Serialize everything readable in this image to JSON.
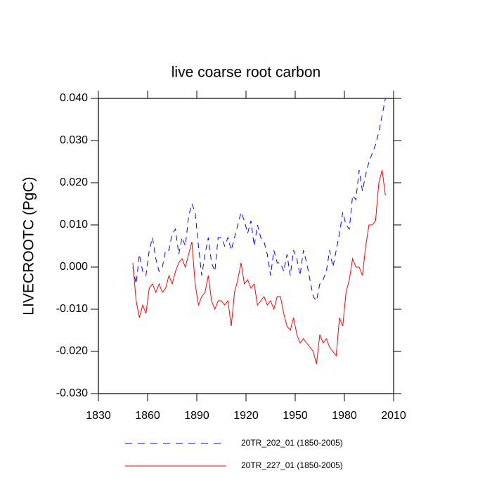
{
  "chart_data": {
    "type": "line",
    "title": "live coarse root carbon",
    "y_label": "LIVECROOTC  (PgC)",
    "x": [
      1851,
      1853,
      1855,
      1857,
      1859,
      1861,
      1863,
      1865,
      1867,
      1869,
      1871,
      1873,
      1875,
      1877,
      1879,
      1881,
      1883,
      1885,
      1887,
      1889,
      1891,
      1893,
      1895,
      1897,
      1899,
      1901,
      1903,
      1905,
      1907,
      1909,
      1911,
      1913,
      1915,
      1917,
      1919,
      1921,
      1923,
      1925,
      1927,
      1929,
      1931,
      1933,
      1935,
      1937,
      1939,
      1941,
      1943,
      1945,
      1947,
      1949,
      1951,
      1953,
      1955,
      1957,
      1959,
      1961,
      1963,
      1965,
      1967,
      1969,
      1971,
      1973,
      1975,
      1977,
      1979,
      1981,
      1983,
      1985,
      1987,
      1989,
      1991,
      1993,
      1995,
      1997,
      1999,
      2001,
      2003,
      2005
    ],
    "series": [
      {
        "name": "20TR_202_01 (1850-2005)",
        "color": "#0000ff",
        "dashed": true,
        "values": [
          0.0,
          -0.004,
          0.003,
          -0.001,
          -0.002,
          0.004,
          0.007,
          0.002,
          -0.001,
          0.0,
          0.004,
          0.004,
          0.008,
          0.009,
          0.003,
          0.007,
          0.005,
          0.012,
          0.015,
          0.013,
          0.005,
          -0.002,
          0.003,
          0.007,
          0.001,
          -0.001,
          0.007,
          0.007,
          0.005,
          0.007,
          0.004,
          0.007,
          0.01,
          0.013,
          0.011,
          0.008,
          0.011,
          0.005,
          0.01,
          0.007,
          0.006,
          0.003,
          -0.002,
          0.004,
          0.001,
          0.001,
          -0.001,
          0.003,
          -0.002,
          0.004,
          0.002,
          -0.002,
          0.004,
          0.001,
          -0.003,
          -0.007,
          -0.008,
          -0.004,
          -0.003,
          -0.001,
          0.004,
          0.0,
          0.004,
          0.008,
          0.013,
          0.01,
          0.009,
          0.017,
          0.016,
          0.023,
          0.018,
          0.022,
          0.025,
          0.027,
          0.029,
          0.032,
          0.036,
          0.04
        ]
      },
      {
        "name": "20TR_227_01 (1850-2005)",
        "color": "#ff0000",
        "dashed": false,
        "values": [
          0.001,
          -0.008,
          -0.012,
          -0.009,
          -0.011,
          -0.005,
          -0.004,
          -0.006,
          -0.004,
          -0.006,
          -0.005,
          -0.002,
          -0.004,
          -0.001,
          0.001,
          0.002,
          0.0,
          0.003,
          0.006,
          -0.004,
          -0.009,
          -0.007,
          -0.006,
          -0.002,
          -0.008,
          -0.01,
          -0.008,
          -0.008,
          -0.009,
          -0.008,
          -0.014,
          -0.006,
          -0.003,
          0.001,
          -0.004,
          -0.003,
          -0.005,
          -0.004,
          -0.009,
          -0.008,
          -0.007,
          -0.009,
          -0.008,
          -0.01,
          -0.007,
          -0.007,
          -0.011,
          -0.014,
          -0.015,
          -0.012,
          -0.016,
          -0.018,
          -0.017,
          -0.018,
          -0.019,
          -0.02,
          -0.023,
          -0.016,
          -0.018,
          -0.017,
          -0.019,
          -0.02,
          -0.021,
          -0.012,
          -0.014,
          -0.006,
          -0.003,
          0.002,
          0.0,
          0.0,
          -0.002,
          0.005,
          0.01,
          0.01,
          0.011,
          0.02,
          0.023,
          0.017
        ]
      }
    ],
    "xlim": [
      1830,
      2010
    ],
    "xticks": [
      1830,
      1860,
      1890,
      1920,
      1950,
      1980,
      2010
    ],
    "ylim": [
      -0.03,
      0.04
    ],
    "yticks": [
      {
        "value": -0.03,
        "label": "-0.030"
      },
      {
        "value": -0.02,
        "label": "-0.020"
      },
      {
        "value": -0.01,
        "label": "-0.010"
      },
      {
        "value": 0,
        "label": "0.000"
      },
      {
        "value": 0.01,
        "label": "0.010"
      },
      {
        "value": 0.02,
        "label": "0.020"
      },
      {
        "value": 0.03,
        "label": "0.030"
      },
      {
        "value": 0.04,
        "label": "0.040"
      }
    ],
    "grid": false,
    "legend": "bottom"
  }
}
